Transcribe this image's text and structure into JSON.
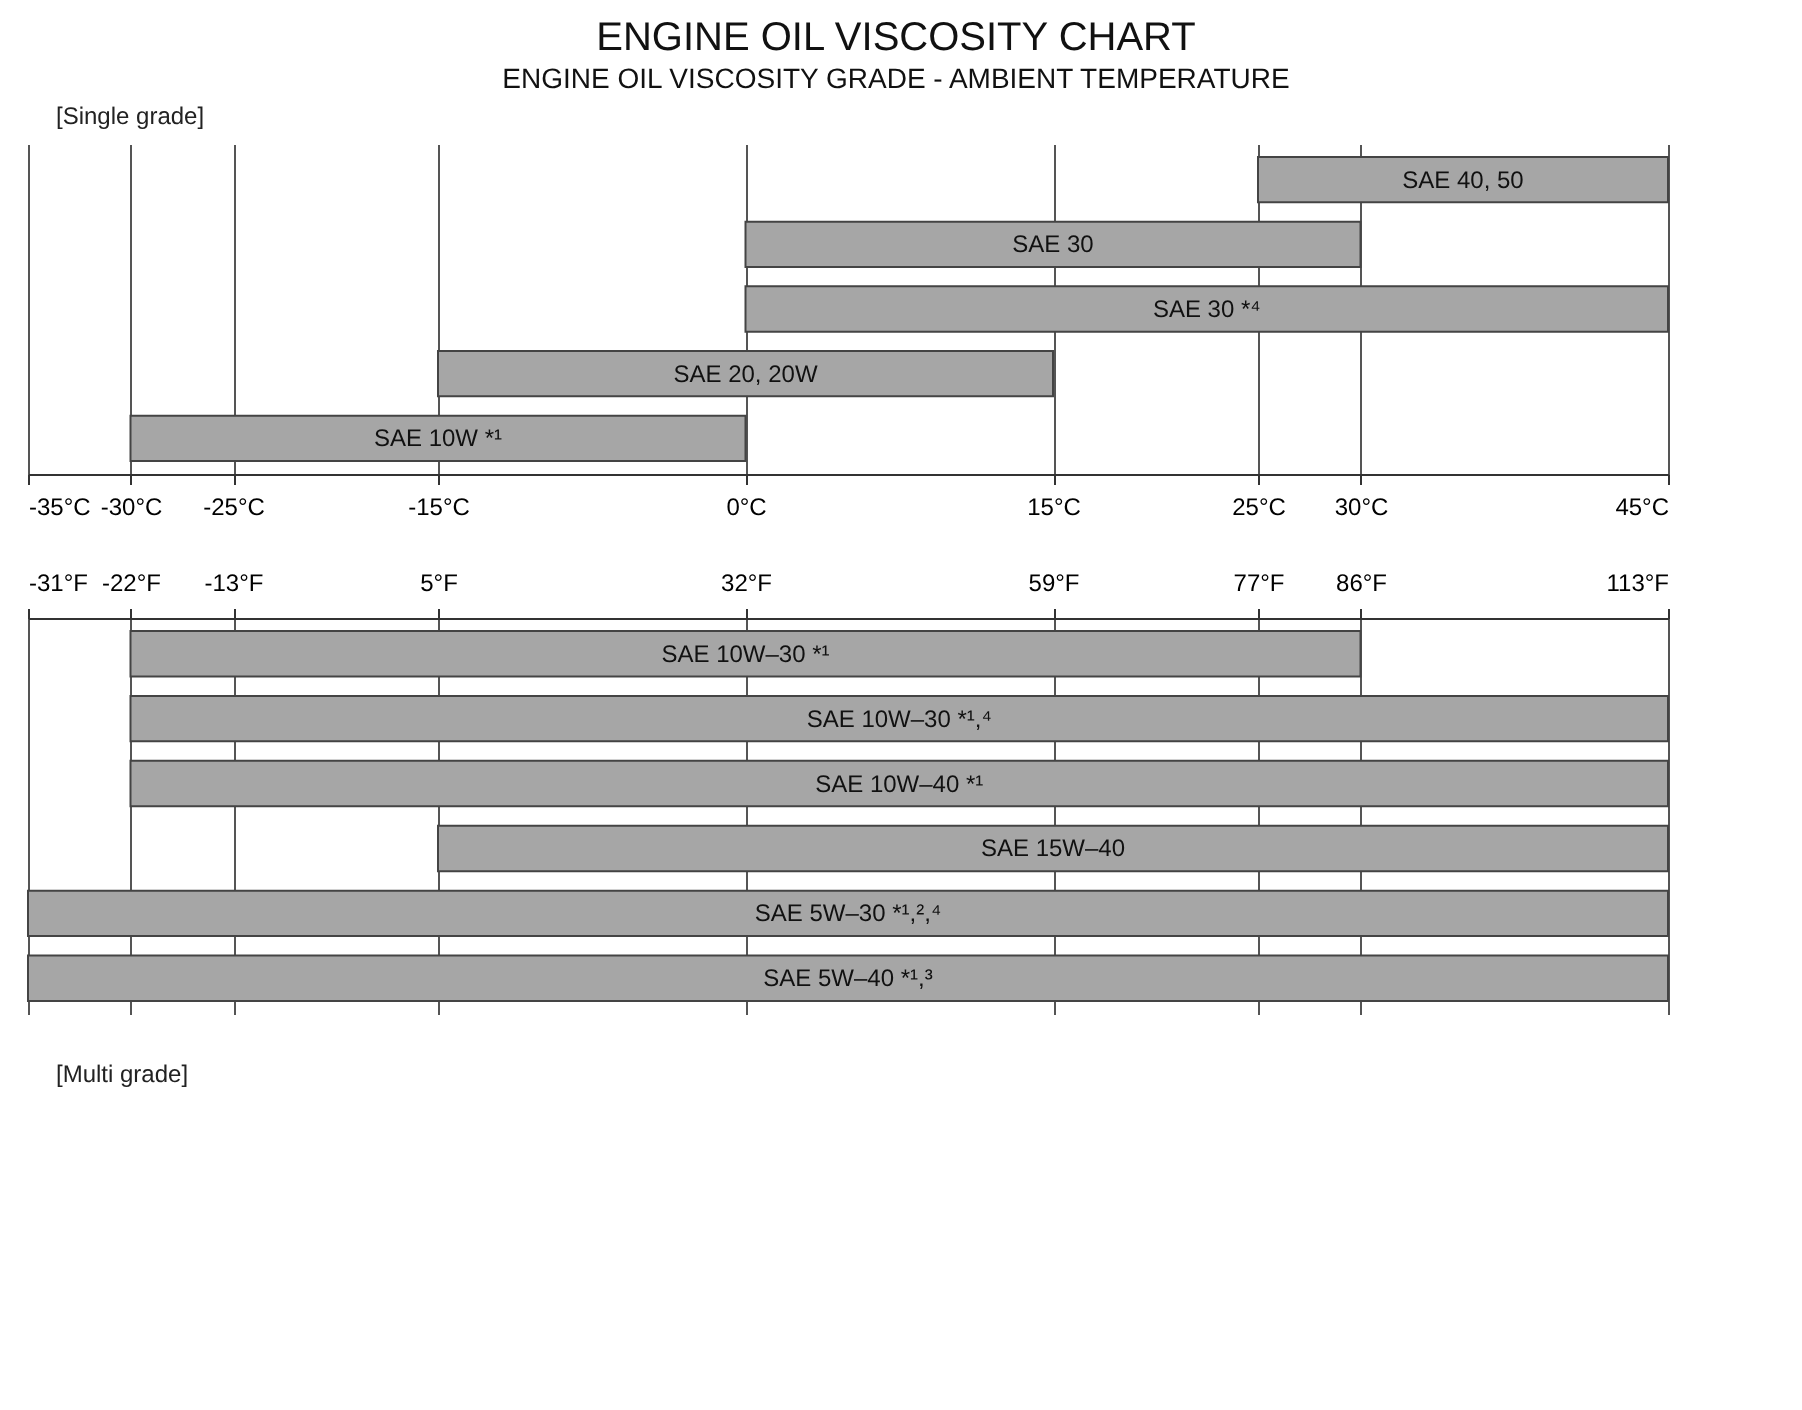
{
  "chart_data": [
    {
      "type": "bar",
      "orientation": "horizontal",
      "title": "ENGINE OIL VISCOSITY CHART",
      "subtitle": "ENGINE OIL VISCOSITY GRADE - AMBIENT TEMPERATURE",
      "annotations": [
        "[Single grade]"
      ],
      "categories": [
        "SAE 40, 50",
        "SAE 30",
        "SAE 30 *⁴",
        "SAE 20, 20W",
        "SAE 10W *¹"
      ],
      "base": [
        25,
        0,
        0,
        -15,
        -30
      ],
      "values": [
        20,
        30,
        45,
        30,
        30
      ],
      "color": "#a6a6a6",
      "xlim": [
        -35,
        45
      ],
      "xticks": [
        {
          "value": -35,
          "label": "-35°C"
        },
        {
          "value": -30,
          "label": "-30°C"
        },
        {
          "value": -25,
          "label": "-25°C"
        },
        {
          "value": -15,
          "label": "-15°C"
        },
        {
          "value": 0,
          "label": "0°C"
        },
        {
          "value": 15,
          "label": "15°C"
        },
        {
          "value": 25,
          "label": "25°C"
        },
        {
          "value": 30,
          "label": "30°C"
        },
        {
          "value": 45,
          "label": "45°C"
        }
      ],
      "grid": "x"
    },
    {
      "type": "bar",
      "orientation": "horizontal",
      "annotations": [
        "[Multi grade]"
      ],
      "categories": [
        "SAE 10W–30 *¹",
        "SAE 10W–30 *¹,⁴",
        "SAE 10W–40 *¹",
        "SAE 15W–40",
        "SAE 5W–30 *¹,²,⁴",
        "SAE 5W–40 *¹,³"
      ],
      "base": [
        -22,
        -22,
        -22,
        5,
        -31,
        -31
      ],
      "values": [
        108,
        135,
        135,
        108,
        144,
        144
      ],
      "color": "#a6a6a6",
      "xlim": [
        -31,
        113
      ],
      "xticks": [
        {
          "value": -31,
          "label": "-31°F"
        },
        {
          "value": -22,
          "label": "-22°F"
        },
        {
          "value": -13,
          "label": "-13°F"
        },
        {
          "value": 5,
          "label": "5°F"
        },
        {
          "value": 32,
          "label": "32°F"
        },
        {
          "value": 59,
          "label": "59°F"
        },
        {
          "value": 77,
          "label": "77°F"
        },
        {
          "value": 86,
          "label": "86°F"
        },
        {
          "value": 113,
          "label": "113°F"
        }
      ],
      "grid": "x"
    }
  ]
}
